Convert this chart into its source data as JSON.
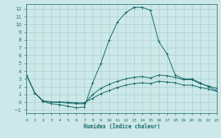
{
  "xlabel": "Humidex (Indice chaleur)",
  "ylabel": "",
  "background_color": "#cde8e8",
  "grid_color": "#aacccc",
  "line_color": "#1a6b6b",
  "xlim": [
    0,
    23
  ],
  "ylim": [
    -1.4,
    12.6
  ],
  "xticks": [
    0,
    1,
    2,
    3,
    4,
    5,
    6,
    7,
    8,
    9,
    10,
    11,
    12,
    13,
    14,
    15,
    16,
    17,
    18,
    19,
    20,
    21,
    22,
    23
  ],
  "yticks": [
    -1,
    0,
    1,
    2,
    3,
    4,
    5,
    6,
    7,
    8,
    9,
    10,
    11,
    12
  ],
  "line1_x": [
    0,
    1,
    2,
    3,
    4,
    5,
    6,
    7,
    8,
    9,
    10,
    11,
    12,
    13,
    14,
    15,
    16,
    17,
    18,
    19,
    20,
    21,
    22,
    23
  ],
  "line1_y": [
    3.5,
    1.2,
    0.1,
    -0.2,
    -0.3,
    -0.5,
    -0.7,
    -0.6,
    2.5,
    5.0,
    8.0,
    10.3,
    11.5,
    12.2,
    12.2,
    11.8,
    7.8,
    6.2,
    3.5,
    3.0,
    3.0,
    2.5,
    2.0,
    1.5
  ],
  "line2_x": [
    0,
    1,
    2,
    3,
    4,
    5,
    6,
    7,
    8,
    9,
    10,
    11,
    12,
    13,
    14,
    15,
    16,
    17,
    18,
    19,
    20,
    21,
    22,
    23
  ],
  "line2_y": [
    3.5,
    1.2,
    0.2,
    0.0,
    0.0,
    -0.1,
    -0.2,
    -0.2,
    1.0,
    1.8,
    2.3,
    2.7,
    3.0,
    3.2,
    3.3,
    3.1,
    3.5,
    3.4,
    3.2,
    2.9,
    2.9,
    2.4,
    2.1,
    1.8
  ],
  "line3_x": [
    0,
    1,
    2,
    3,
    4,
    5,
    6,
    7,
    8,
    9,
    10,
    11,
    12,
    13,
    14,
    15,
    16,
    17,
    18,
    19,
    20,
    21,
    22,
    23
  ],
  "line3_y": [
    3.5,
    1.2,
    0.15,
    0.05,
    0.05,
    0.0,
    -0.05,
    -0.05,
    0.5,
    1.1,
    1.5,
    1.9,
    2.2,
    2.4,
    2.5,
    2.4,
    2.7,
    2.6,
    2.5,
    2.2,
    2.2,
    1.9,
    1.7,
    1.4
  ]
}
